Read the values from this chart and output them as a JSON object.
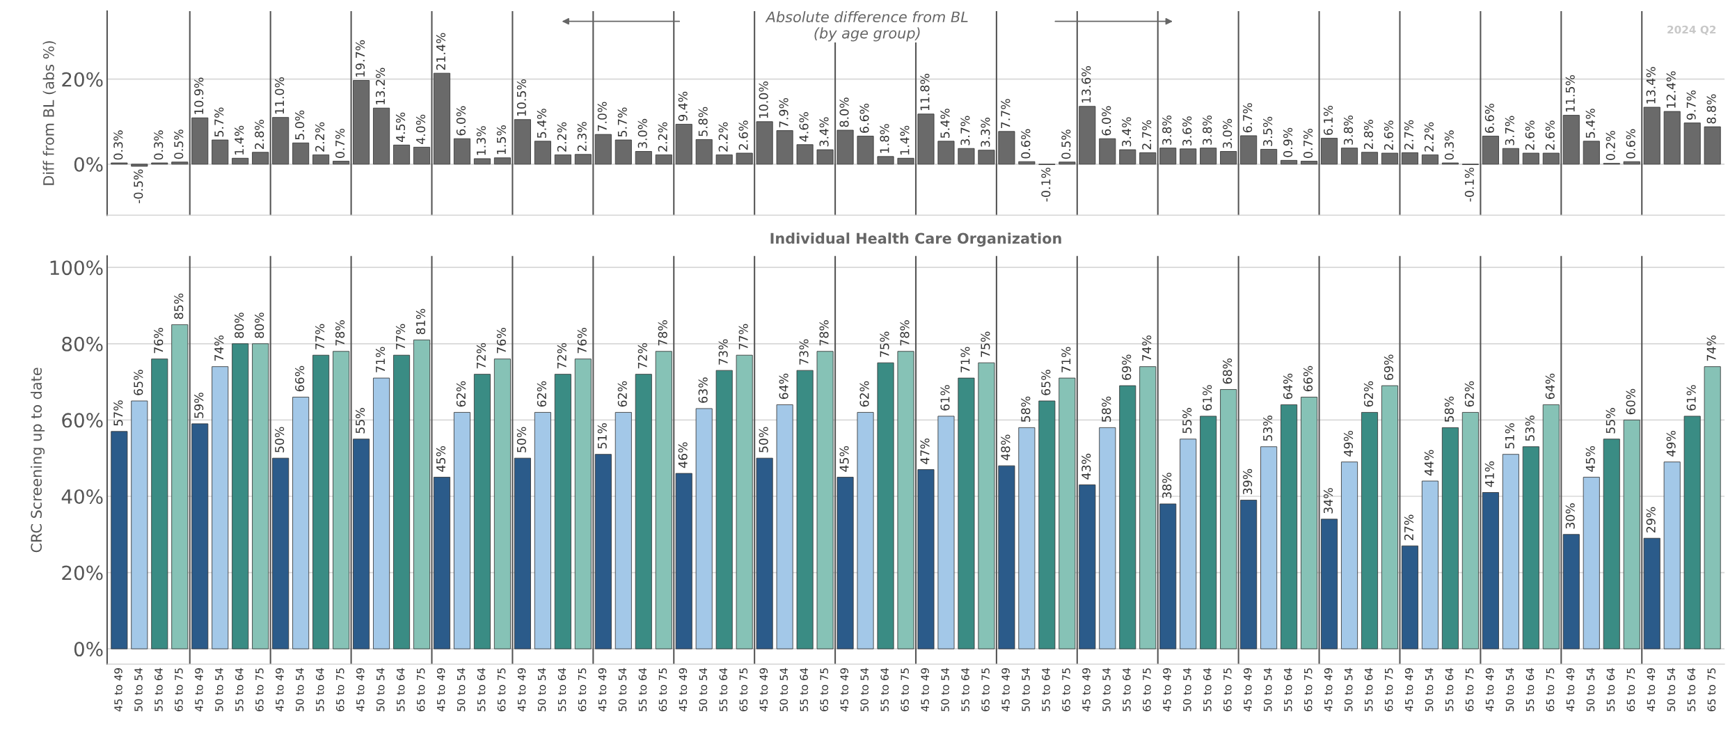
{
  "chart_data": [
    {
      "type": "bar",
      "categories": [
        null,
        null,
        null,
        null,
        null,
        null,
        null,
        null,
        null,
        null,
        null,
        null,
        null,
        null,
        null,
        null,
        null,
        null,
        null,
        null,
        null,
        null,
        null,
        null,
        null,
        null,
        null,
        null,
        null,
        null,
        null,
        null,
        null,
        null,
        null,
        null,
        null,
        null,
        null,
        null,
        null,
        null,
        null,
        null,
        null,
        null,
        null,
        null,
        null,
        null,
        null,
        null,
        null,
        null,
        null,
        null,
        null,
        null,
        null,
        null,
        null,
        null,
        null,
        null,
        null,
        null,
        null,
        null,
        null,
        null,
        null,
        null,
        null,
        null,
        null,
        null,
        null,
        null,
        null,
        null
      ],
      "values": [
        0.3,
        -0.5,
        0.3,
        0.5,
        10.9,
        5.7,
        1.4,
        2.8,
        11.0,
        5.0,
        2.2,
        0.7,
        19.7,
        13.2,
        4.5,
        4.0,
        21.4,
        6.0,
        1.3,
        1.5,
        10.5,
        5.4,
        2.2,
        2.3,
        7.0,
        5.7,
        3.0,
        2.2,
        9.4,
        5.8,
        2.2,
        2.6,
        10.0,
        7.9,
        4.6,
        3.4,
        8.0,
        6.6,
        1.8,
        1.4,
        11.8,
        5.4,
        3.7,
        3.3,
        7.7,
        0.6,
        -0.1,
        0.5,
        13.6,
        6.0,
        3.4,
        2.7,
        3.8,
        3.6,
        3.8,
        3.0,
        6.7,
        3.5,
        0.9,
        0.7,
        6.1,
        3.8,
        2.8,
        2.6,
        2.7,
        2.2,
        0.3,
        -0.1,
        6.6,
        3.7,
        2.6,
        2.6,
        11.5,
        5.4,
        0.2,
        0.6,
        13.4,
        12.4,
        9.7,
        8.8
      ],
      "value_labels": [
        "0.3%",
        "-0.5%",
        "0.3%",
        "0.5%",
        "10.9%",
        "5.7%",
        "1.4%",
        "2.8%",
        "11.0%",
        "5.0%",
        "2.2%",
        "0.7%",
        "19.7%",
        "13.2%",
        "4.5%",
        "4.0%",
        "21.4%",
        "6.0%",
        "1.3%",
        "1.5%",
        "10.5%",
        "5.4%",
        "2.2%",
        "2.3%",
        "7.0%",
        "5.7%",
        "3.0%",
        "2.2%",
        "9.4%",
        "5.8%",
        "2.2%",
        "2.6%",
        "10.0%",
        "7.9%",
        "4.6%",
        "3.4%",
        "8.0%",
        "6.6%",
        "1.8%",
        "1.4%",
        "11.8%",
        "5.4%",
        "3.7%",
        "3.3%",
        "7.7%",
        "0.6%",
        "-0.1%",
        "0.5%",
        "13.6%",
        "6.0%",
        "3.4%",
        "2.7%",
        "3.8%",
        "3.6%",
        "3.8%",
        "3.0%",
        "6.7%",
        "3.5%",
        "0.9%",
        "0.7%",
        "6.1%",
        "3.8%",
        "2.8%",
        "2.6%",
        "2.7%",
        "2.2%",
        "0.3%",
        "-0.1%",
        "6.6%",
        "3.7%",
        "2.6%",
        "2.6%",
        "11.5%",
        "5.4%",
        "0.2%",
        "0.6%",
        "13.4%",
        "12.4%",
        "9.7%",
        "8.8%"
      ],
      "color": "#6a6a6a",
      "ylabel": "Diff from BL (abs %)",
      "ylim": [
        -12,
        36
      ],
      "yticks": [
        {
          "value": 0,
          "label": "0%"
        },
        {
          "value": 20,
          "label": "20%"
        }
      ],
      "grid": "y",
      "tick_labels": "y",
      "annotations": [
        "Absolute difference from BL\n(by age group)",
        "2024 Q2"
      ]
    },
    {
      "type": "bar",
      "title": "Individual Health Care Organization",
      "categories": [
        "45 to 49",
        "50 to 54",
        "55 to 64",
        "65 to 75",
        "45 to 49",
        "50 to 54",
        "55 to 64",
        "65 to 75",
        "45 to 49",
        "50 to 54",
        "55 to 64",
        "65 to 75",
        "45 to 49",
        "50 to 54",
        "55 to 64",
        "65 to 75",
        "45 to 49",
        "50 to 54",
        "55 to 64",
        "65 to 75",
        "45 to 49",
        "50 to 54",
        "55 to 64",
        "65 to 75",
        "45 to 49",
        "50 to 54",
        "55 to 64",
        "65 to 75",
        "45 to 49",
        "50 to 54",
        "55 to 64",
        "65 to 75",
        "45 to 49",
        "50 to 54",
        "55 to 64",
        "65 to 75",
        "45 to 49",
        "50 to 54",
        "55 to 64",
        "65 to 75",
        "45 to 49",
        "50 to 54",
        "55 to 64",
        "65 to 75",
        "45 to 49",
        "50 to 54",
        "55 to 64",
        "65 to 75",
        "45 to 49",
        "50 to 54",
        "55 to 64",
        "65 to 75",
        "45 to 49",
        "50 to 54",
        "55 to 64",
        "65 to 75",
        "45 to 49",
        "50 to 54",
        "55 to 64",
        "65 to 75",
        "45 to 49",
        "50 to 54",
        "55 to 64",
        "65 to 75",
        "45 to 49",
        "50 to 54",
        "55 to 64",
        "65 to 75",
        "45 to 49",
        "50 to 54",
        "55 to 64",
        "65 to 75",
        "45 to 49",
        "50 to 54",
        "55 to 64",
        "65 to 75",
        "45 to 49",
        "50 to 54",
        "55 to 64",
        "65 to 75"
      ],
      "values": [
        57,
        65,
        76,
        85,
        59,
        74,
        80,
        80,
        50,
        66,
        77,
        78,
        55,
        71,
        77,
        81,
        45,
        62,
        72,
        76,
        50,
        62,
        72,
        76,
        51,
        62,
        72,
        78,
        46,
        63,
        73,
        77,
        50,
        64,
        73,
        78,
        45,
        62,
        75,
        78,
        47,
        61,
        71,
        75,
        48,
        58,
        65,
        71,
        43,
        58,
        69,
        74,
        38,
        55,
        61,
        68,
        39,
        53,
        64,
        66,
        34,
        49,
        62,
        69,
        27,
        44,
        58,
        62,
        41,
        51,
        53,
        64,
        30,
        45,
        55,
        60,
        29,
        49,
        61,
        74
      ],
      "value_labels": [
        "57%",
        "65%",
        "76%",
        "85%",
        "59%",
        "74%",
        "80%",
        "80%",
        "50%",
        "66%",
        "77%",
        "78%",
        "55%",
        "71%",
        "77%",
        "81%",
        "45%",
        "62%",
        "72%",
        "76%",
        "50%",
        "62%",
        "72%",
        "76%",
        "51%",
        "62%",
        "72%",
        "78%",
        "46%",
        "63%",
        "73%",
        "77%",
        "50%",
        "64%",
        "73%",
        "78%",
        "45%",
        "62%",
        "75%",
        "78%",
        "47%",
        "61%",
        "71%",
        "75%",
        "48%",
        "58%",
        "65%",
        "71%",
        "43%",
        "58%",
        "69%",
        "74%",
        "38%",
        "55%",
        "61%",
        "68%",
        "39%",
        "53%",
        "64%",
        "66%",
        "34%",
        "49%",
        "62%",
        "69%",
        "27%",
        "44%",
        "58%",
        "62%",
        "41%",
        "51%",
        "53%",
        "64%",
        "30%",
        "45%",
        "55%",
        "60%",
        "29%",
        "49%",
        "61%",
        "74%"
      ],
      "colors": [
        "#2b5b8a",
        "#a3c8e8",
        "#3a8c84",
        "#86c2b6",
        "#2b5b8a",
        "#a3c8e8",
        "#3a8c84",
        "#86c2b6",
        "#2b5b8a",
        "#a3c8e8",
        "#3a8c84",
        "#86c2b6",
        "#2b5b8a",
        "#a3c8e8",
        "#3a8c84",
        "#86c2b6",
        "#2b5b8a",
        "#a3c8e8",
        "#3a8c84",
        "#86c2b6",
        "#2b5b8a",
        "#a3c8e8",
        "#3a8c84",
        "#86c2b6",
        "#2b5b8a",
        "#a3c8e8",
        "#3a8c84",
        "#86c2b6",
        "#2b5b8a",
        "#a3c8e8",
        "#3a8c84",
        "#86c2b6",
        "#2b5b8a",
        "#a3c8e8",
        "#3a8c84",
        "#86c2b6",
        "#2b5b8a",
        "#a3c8e8",
        "#3a8c84",
        "#86c2b6",
        "#2b5b8a",
        "#a3c8e8",
        "#3a8c84",
        "#86c2b6",
        "#2b5b8a",
        "#a3c8e8",
        "#3a8c84",
        "#86c2b6",
        "#2b5b8a",
        "#a3c8e8",
        "#3a8c84",
        "#86c2b6",
        "#2b5b8a",
        "#a3c8e8",
        "#3a8c84",
        "#86c2b6",
        "#2b5b8a",
        "#a3c8e8",
        "#3a8c84",
        "#86c2b6",
        "#2b5b8a",
        "#a3c8e8",
        "#3a8c84",
        "#86c2b6",
        "#2b5b8a",
        "#a3c8e8",
        "#3a8c84",
        "#86c2b6",
        "#2b5b8a",
        "#a3c8e8",
        "#3a8c84",
        "#86c2b6",
        "#2b5b8a",
        "#a3c8e8",
        "#3a8c84",
        "#86c2b6",
        "#2b5b8a",
        "#a3c8e8",
        "#3a8c84",
        "#86c2b6"
      ],
      "ylabel": "CRC Screening up to date",
      "ylim": [
        -4,
        103
      ],
      "yticks": [
        {
          "value": 0,
          "label": "0%"
        },
        {
          "value": 20,
          "label": "20%"
        },
        {
          "value": 40,
          "label": "40%"
        },
        {
          "value": 60,
          "label": "60%"
        },
        {
          "value": 80,
          "label": "80%"
        },
        {
          "value": 100,
          "label": "100%"
        }
      ],
      "grid": "y"
    }
  ]
}
